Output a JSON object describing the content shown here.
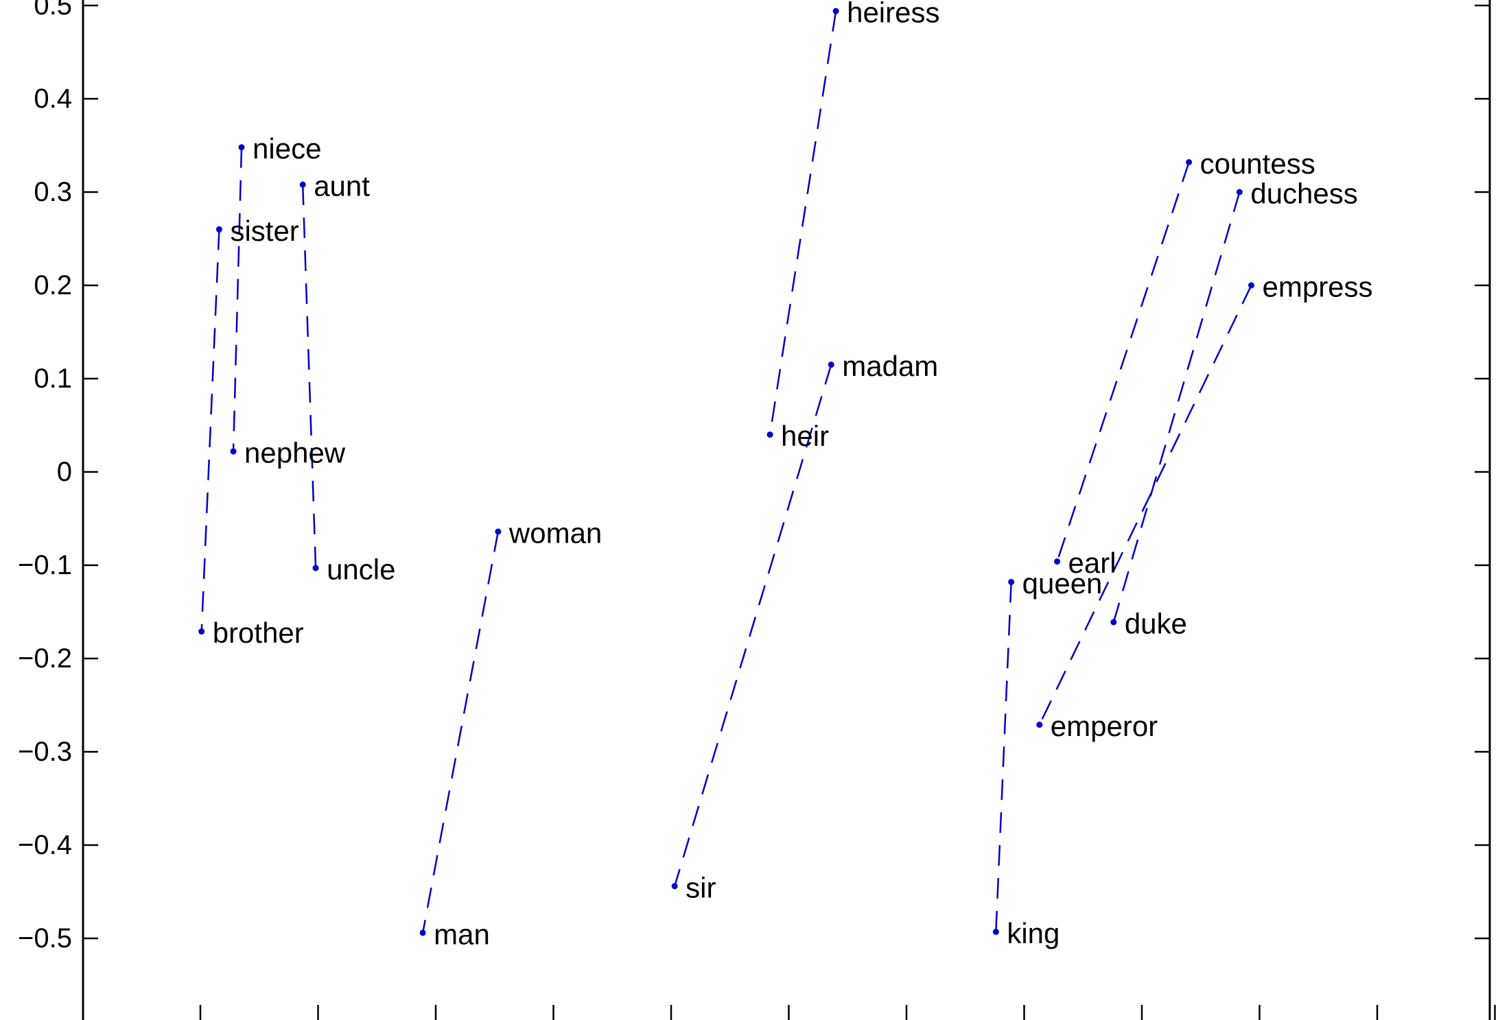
{
  "chart_data": {
    "type": "scatter",
    "title": "",
    "xlabel": "",
    "ylabel": "",
    "ylim": [
      -0.6,
      0.52
    ],
    "xlim": [
      -0.5,
      0.85
    ],
    "yticks": [
      {
        "value": 0.5,
        "label": "0.5"
      },
      {
        "value": 0.4,
        "label": "0.4"
      },
      {
        "value": 0.3,
        "label": "0.3"
      },
      {
        "value": 0.2,
        "label": "0.2"
      },
      {
        "value": 0.1,
        "label": "0.1"
      },
      {
        "value": 0,
        "label": "0"
      },
      {
        "value": -0.1,
        "label": "−0.1"
      },
      {
        "value": -0.2,
        "label": "−0.2"
      },
      {
        "value": -0.3,
        "label": "−0.3"
      },
      {
        "value": -0.4,
        "label": "−0.4"
      },
      {
        "value": -0.5,
        "label": "−0.5"
      }
    ],
    "xticks": [
      -0.4,
      -0.3,
      -0.2,
      -0.1,
      0,
      0.1,
      0.2,
      0.3,
      0.4,
      0.5,
      0.6,
      0.7
    ],
    "grid": false,
    "marker_color": "#0000cc",
    "points": [
      {
        "label": "niece",
        "x": -0.365,
        "y": 0.348
      },
      {
        "label": "aunt",
        "x": -0.313,
        "y": 0.308
      },
      {
        "label": "sister",
        "x": -0.384,
        "y": 0.26
      },
      {
        "label": "nephew",
        "x": -0.372,
        "y": 0.022
      },
      {
        "label": "uncle",
        "x": -0.302,
        "y": -0.103
      },
      {
        "label": "brother",
        "x": -0.399,
        "y": -0.171
      },
      {
        "label": "woman",
        "x": -0.147,
        "y": -0.064
      },
      {
        "label": "man",
        "x": -0.211,
        "y": -0.494
      },
      {
        "label": "heiress",
        "x": 0.14,
        "y": 0.494
      },
      {
        "label": "madam",
        "x": 0.136,
        "y": 0.115
      },
      {
        "label": "heir",
        "x": 0.084,
        "y": 0.04
      },
      {
        "label": "sir",
        "x": 0.003,
        "y": -0.444
      },
      {
        "label": "countess",
        "x": 0.44,
        "y": 0.332
      },
      {
        "label": "duchess",
        "x": 0.483,
        "y": 0.3
      },
      {
        "label": "empress",
        "x": 0.493,
        "y": 0.2
      },
      {
        "label": "earl",
        "x": 0.328,
        "y": -0.096
      },
      {
        "label": "queen",
        "x": 0.289,
        "y": -0.118
      },
      {
        "label": "duke",
        "x": 0.376,
        "y": -0.161
      },
      {
        "label": "emperor",
        "x": 0.313,
        "y": -0.271
      },
      {
        "label": "king",
        "x": 0.276,
        "y": -0.493
      }
    ],
    "pairs": [
      [
        "niece",
        "nephew"
      ],
      [
        "aunt",
        "uncle"
      ],
      [
        "sister",
        "brother"
      ],
      [
        "woman",
        "man"
      ],
      [
        "heiress",
        "heir"
      ],
      [
        "madam",
        "sir"
      ],
      [
        "countess",
        "earl"
      ],
      [
        "duchess",
        "duke"
      ],
      [
        "empress",
        "emperor"
      ],
      [
        "queen",
        "king"
      ]
    ]
  }
}
